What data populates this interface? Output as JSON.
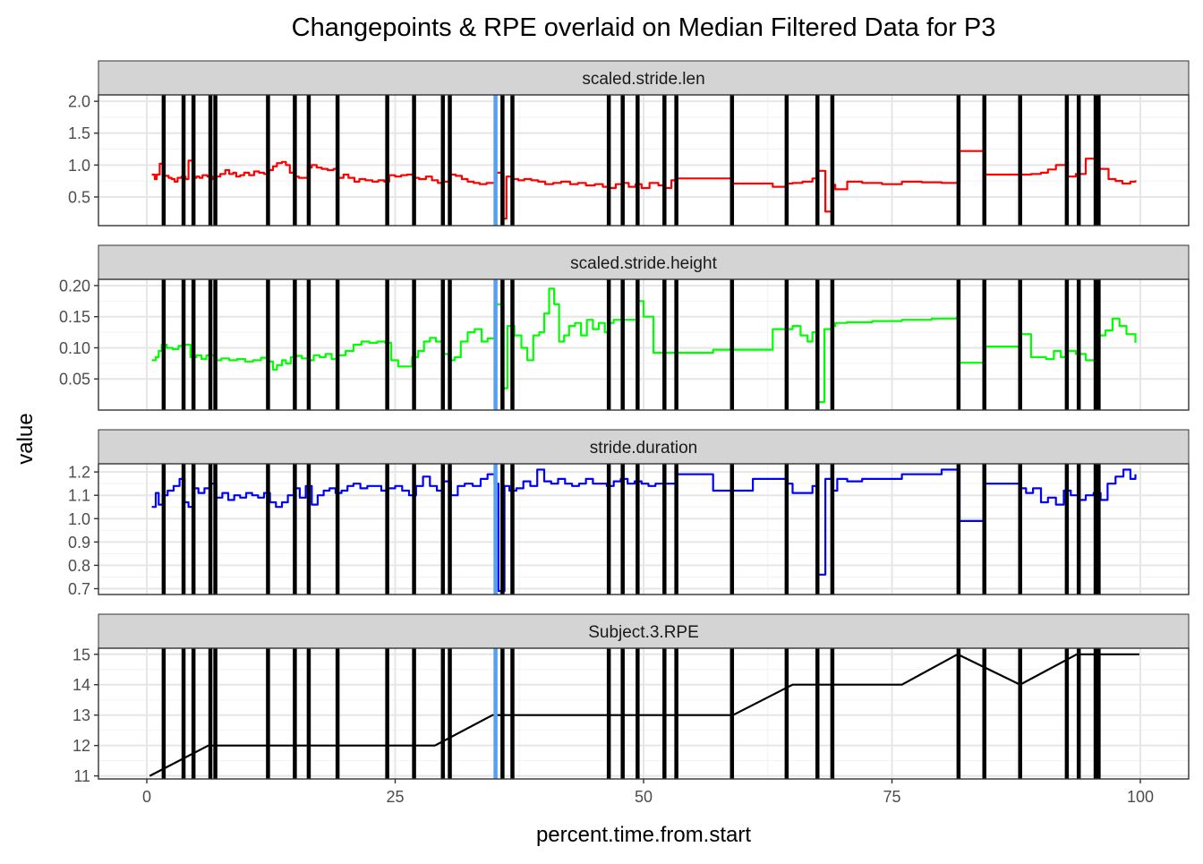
{
  "chart_data": {
    "type": "line",
    "title": "Changepoints & RPE overlaid on Median Filtered Data for P3",
    "xlabel": "percent.time.from.start",
    "ylabel": "value",
    "xlim": [
      0,
      100
    ],
    "x_ticks": [
      0,
      25,
      50,
      75,
      100
    ],
    "x_tick_labels": [
      "0",
      "25",
      "50",
      "75",
      "100"
    ],
    "grid": true,
    "changepoints": [
      1.7,
      3.7,
      4.7,
      6.4,
      6.9,
      12.2,
      14.9,
      16.3,
      19.2,
      24.2,
      26.9,
      29.8,
      30.5,
      35.8,
      36.8,
      46.5,
      47.9,
      49.4,
      52.1,
      53.3,
      58.9,
      64.4,
      67.5,
      69.0,
      81.7,
      84.3,
      87.9,
      92.6,
      93.8,
      95.5,
      95.8
    ],
    "rpe_change": 35.1,
    "colors": {
      "changepoint": "#000000",
      "rpe_change": "#56a0f0"
    },
    "panels": [
      {
        "strip": "scaled.stride.len",
        "color": "#ff0000",
        "ylim": [
          0.05,
          2.1
        ],
        "y_ticks": [
          0.5,
          1.0,
          1.5,
          2.0
        ],
        "y_tick_labels": [
          "0.5",
          "1.0",
          "1.5",
          "2.0"
        ],
        "x": [
          0.5,
          0.8,
          1.0,
          1.3,
          1.6,
          2.2,
          2.5,
          2.8,
          3.1,
          3.5,
          3.9,
          4.2,
          4.6,
          5.0,
          5.3,
          5.6,
          6.1,
          6.6,
          7.0,
          7.4,
          7.9,
          8.3,
          8.7,
          9.0,
          9.4,
          9.8,
          10.3,
          10.8,
          11.3,
          11.8,
          12.3,
          12.7,
          13.1,
          13.6,
          14.0,
          14.4,
          14.9,
          15.3,
          15.8,
          16.2,
          16.6,
          17.1,
          17.6,
          18.2,
          18.8,
          19.3,
          19.8,
          20.3,
          20.9,
          21.4,
          22.0,
          22.7,
          23.3,
          23.9,
          24.4,
          25.0,
          25.6,
          26.2,
          26.8,
          27.4,
          28.1,
          28.7,
          29.3,
          29.9,
          30.5,
          31.1,
          31.7,
          32.3,
          32.9,
          33.5,
          34.2,
          35.0,
          35.2,
          35.9,
          36.2,
          36.8,
          37.4,
          38.0,
          38.7,
          39.4,
          40.1,
          40.9,
          41.7,
          42.6,
          43.4,
          44.2,
          45.1,
          45.9,
          46.6,
          47.2,
          47.8,
          48.5,
          49.2,
          49.8,
          50.6,
          51.5,
          52.1,
          52.8,
          53.4,
          55.0,
          57.0,
          58.9,
          61.0,
          63.0,
          64.5,
          65.0,
          66.0,
          67.0,
          67.6,
          68.3,
          69.0,
          69.3,
          70.5,
          72.0,
          74.0,
          76.0,
          78.0,
          80.0,
          81.6,
          81.8,
          83.0,
          84.2,
          84.4,
          86.0,
          87.8,
          88.0,
          89.0,
          90.0,
          90.7,
          91.5,
          92.5,
          92.7,
          93.5,
          94.5,
          95.5,
          95.9,
          96.8,
          97.5,
          98.2,
          99.0,
          99.5
        ],
        "y": [
          0.85,
          0.78,
          0.85,
          1.02,
          0.83,
          0.8,
          0.78,
          0.74,
          0.8,
          0.82,
          0.78,
          1.07,
          0.8,
          0.82,
          0.8,
          0.84,
          0.82,
          0.78,
          0.82,
          0.86,
          0.92,
          0.86,
          0.88,
          0.82,
          0.84,
          0.88,
          0.84,
          0.9,
          0.88,
          0.86,
          0.92,
          0.98,
          1.03,
          1.05,
          1.0,
          0.88,
          0.82,
          0.8,
          0.8,
          0.96,
          1.0,
          0.96,
          0.94,
          0.92,
          0.94,
          0.8,
          0.85,
          0.8,
          0.74,
          0.78,
          0.76,
          0.74,
          0.76,
          0.74,
          0.84,
          0.82,
          0.84,
          0.85,
          0.8,
          0.78,
          0.82,
          0.76,
          0.72,
          0.74,
          0.85,
          0.83,
          0.78,
          0.74,
          0.72,
          0.7,
          0.72,
          0.74,
          0.88,
          0.16,
          0.82,
          0.78,
          0.76,
          0.78,
          0.76,
          0.74,
          0.7,
          0.72,
          0.74,
          0.7,
          0.72,
          0.68,
          0.7,
          0.66,
          0.64,
          0.7,
          0.72,
          0.66,
          0.7,
          0.64,
          0.72,
          0.68,
          0.64,
          0.76,
          0.79,
          0.79,
          0.79,
          0.71,
          0.71,
          0.66,
          0.71,
          0.72,
          0.74,
          0.79,
          0.91,
          0.27,
          0.69,
          0.62,
          0.74,
          0.72,
          0.7,
          0.74,
          0.73,
          0.72,
          0.71,
          1.22,
          1.22,
          0.85,
          0.85,
          0.85,
          0.7,
          0.85,
          0.86,
          0.88,
          0.93,
          1.0,
          1.05,
          0.82,
          0.86,
          1.1,
          1.0,
          0.94,
          0.78,
          0.75,
          0.71,
          0.74,
          0.76
        ]
      },
      {
        "strip": "scaled.stride.height",
        "color": "#00ff00",
        "ylim": [
          0.0,
          0.21
        ],
        "y_ticks": [
          0.05,
          0.1,
          0.15,
          0.2
        ],
        "y_tick_labels": [
          "0.05",
          "0.10",
          "0.15",
          "0.20"
        ],
        "x": [
          0.5,
          0.9,
          1.2,
          1.5,
          2.0,
          2.6,
          3.2,
          3.8,
          4.4,
          5.0,
          5.5,
          6.0,
          6.8,
          7.5,
          8.3,
          9.1,
          9.9,
          10.7,
          11.5,
          12.3,
          12.7,
          13.1,
          13.6,
          14.0,
          14.5,
          15.0,
          15.6,
          16.2,
          16.8,
          17.4,
          18.0,
          18.6,
          19.2,
          20.0,
          20.8,
          21.6,
          22.4,
          23.2,
          24.0,
          24.6,
          25.3,
          26.0,
          26.7,
          27.3,
          27.9,
          28.5,
          29.1,
          29.7,
          30.4,
          31.0,
          31.6,
          32.3,
          33.0,
          33.7,
          34.3,
          35.0,
          35.2,
          35.9,
          36.3,
          37.0,
          37.7,
          38.3,
          38.9,
          39.5,
          40.0,
          40.5,
          41.0,
          41.5,
          42.0,
          42.5,
          43.1,
          43.7,
          44.3,
          44.9,
          45.5,
          46.1,
          46.6,
          47.0,
          48.0,
          49.4,
          50.0,
          51.0,
          52.1,
          53.3,
          55.0,
          57.0,
          58.9,
          61.0,
          63.0,
          64.5,
          65.0,
          65.8,
          66.5,
          67.0,
          67.6,
          68.2,
          69.0,
          69.3,
          70.5,
          73.0,
          76.0,
          79.0,
          81.5,
          81.8,
          83.0,
          84.3,
          86.0,
          87.9,
          89.0,
          90.5,
          91.3,
          92.0,
          92.7,
          93.5,
          94.5,
          95.5,
          95.9,
          96.5,
          97.2,
          97.9,
          98.6,
          99.5
        ],
        "y": [
          0.08,
          0.085,
          0.095,
          0.105,
          0.1,
          0.098,
          0.103,
          0.105,
          0.085,
          0.088,
          0.082,
          0.088,
          0.08,
          0.083,
          0.08,
          0.082,
          0.078,
          0.08,
          0.084,
          0.078,
          0.065,
          0.072,
          0.08,
          0.075,
          0.085,
          0.087,
          0.083,
          0.08,
          0.088,
          0.085,
          0.09,
          0.082,
          0.088,
          0.095,
          0.105,
          0.11,
          0.108,
          0.11,
          0.108,
          0.08,
          0.07,
          0.07,
          0.085,
          0.095,
          0.11,
          0.116,
          0.11,
          0.09,
          0.08,
          0.085,
          0.11,
          0.125,
          0.13,
          0.11,
          0.115,
          0.168,
          0.17,
          0.035,
          0.135,
          0.12,
          0.1,
          0.08,
          0.12,
          0.125,
          0.155,
          0.195,
          0.17,
          0.11,
          0.12,
          0.135,
          0.14,
          0.12,
          0.145,
          0.13,
          0.14,
          0.125,
          0.14,
          0.145,
          0.145,
          0.175,
          0.15,
          0.092,
          0.092,
          0.092,
          0.092,
          0.097,
          0.097,
          0.097,
          0.13,
          0.13,
          0.135,
          0.12,
          0.11,
          0.125,
          0.013,
          0.13,
          0.135,
          0.14,
          0.141,
          0.143,
          0.145,
          0.147,
          0.148,
          0.076,
          0.076,
          0.102,
          0.102,
          0.122,
          0.085,
          0.082,
          0.095,
          0.085,
          0.095,
          0.09,
          0.08,
          0.09,
          0.12,
          0.128,
          0.147,
          0.135,
          0.122,
          0.108
        ]
      },
      {
        "strip": "stride.duration",
        "color": "#0000ff",
        "ylim": [
          0.675,
          1.235
        ],
        "y_ticks": [
          0.7,
          0.8,
          0.9,
          1.0,
          1.1,
          1.2
        ],
        "y_tick_labels": [
          "0.7",
          "0.8",
          "0.9",
          "1.0",
          "1.1",
          "1.2"
        ],
        "x": [
          0.5,
          0.9,
          1.2,
          1.6,
          2.1,
          2.7,
          3.3,
          3.8,
          4.2,
          4.7,
          5.2,
          5.8,
          6.4,
          7.0,
          7.6,
          8.2,
          8.8,
          9.4,
          10.0,
          10.6,
          11.2,
          11.8,
          12.4,
          13.0,
          13.6,
          14.2,
          14.8,
          15.4,
          16.0,
          16.6,
          17.2,
          17.8,
          18.4,
          19.0,
          19.6,
          20.2,
          20.8,
          21.5,
          22.2,
          22.9,
          23.6,
          24.3,
          25.0,
          25.7,
          26.4,
          27.1,
          27.8,
          28.5,
          29.2,
          29.9,
          30.6,
          31.3,
          32.0,
          32.8,
          33.6,
          34.3,
          35.0,
          35.4,
          36.0,
          36.5,
          37.2,
          37.9,
          38.6,
          39.3,
          40.0,
          40.7,
          41.4,
          42.1,
          42.8,
          43.5,
          44.2,
          44.9,
          45.6,
          46.3,
          47.0,
          47.7,
          48.4,
          49.1,
          49.8,
          50.5,
          51.2,
          52.0,
          53.3,
          55.0,
          57.0,
          58.9,
          61.0,
          63.0,
          64.5,
          65.0,
          66.0,
          67.0,
          67.6,
          68.3,
          69.0,
          69.5,
          70.5,
          72.0,
          74.0,
          76.0,
          78.0,
          80.0,
          81.6,
          81.8,
          83.0,
          84.3,
          86.0,
          87.9,
          88.5,
          89.2,
          90.0,
          90.7,
          91.5,
          92.3,
          93.0,
          93.7,
          94.5,
          95.3,
          96.0,
          96.7,
          97.5,
          98.3,
          99.0,
          99.5
        ],
        "y": [
          1.05,
          1.11,
          1.06,
          1.1,
          1.12,
          1.14,
          1.17,
          1.07,
          1.05,
          1.13,
          1.11,
          1.13,
          1.15,
          1.09,
          1.11,
          1.08,
          1.1,
          1.09,
          1.11,
          1.1,
          1.09,
          1.11,
          1.07,
          1.05,
          1.07,
          1.1,
          1.13,
          1.09,
          1.14,
          1.06,
          1.1,
          1.12,
          1.13,
          1.11,
          1.12,
          1.14,
          1.15,
          1.13,
          1.14,
          1.14,
          1.12,
          1.13,
          1.14,
          1.12,
          1.1,
          1.14,
          1.18,
          1.14,
          1.12,
          1.16,
          1.1,
          1.14,
          1.15,
          1.14,
          1.17,
          1.19,
          1.15,
          0.69,
          1.14,
          1.12,
          1.13,
          1.16,
          1.14,
          1.21,
          1.16,
          1.15,
          1.17,
          1.15,
          1.14,
          1.15,
          1.17,
          1.15,
          1.15,
          1.14,
          1.16,
          1.17,
          1.15,
          1.16,
          1.15,
          1.14,
          1.15,
          1.15,
          1.19,
          1.19,
          1.12,
          1.12,
          1.17,
          1.17,
          1.15,
          1.11,
          1.11,
          1.14,
          0.76,
          1.17,
          1.12,
          1.17,
          1.16,
          1.17,
          1.17,
          1.19,
          1.19,
          1.21,
          1.21,
          0.99,
          0.99,
          1.15,
          1.15,
          1.13,
          1.11,
          1.13,
          1.07,
          1.09,
          1.06,
          1.12,
          1.1,
          1.08,
          1.1,
          1.11,
          1.08,
          1.15,
          1.18,
          1.21,
          1.17,
          1.19
        ]
      },
      {
        "strip": "Subject.3.RPE",
        "color": "#000000",
        "ylim": [
          10.9,
          15.2
        ],
        "y_ticks": [
          11,
          12,
          13,
          14,
          15
        ],
        "y_tick_labels": [
          "11",
          "12",
          "13",
          "14",
          "15"
        ],
        "x": [
          0.3,
          6.2,
          29.0,
          34.8,
          59.0,
          65.0,
          76.0,
          81.6,
          87.9,
          93.6,
          99.9
        ],
        "y": [
          11,
          12,
          12,
          13,
          13,
          14,
          14,
          15,
          14,
          15,
          15
        ]
      }
    ]
  }
}
